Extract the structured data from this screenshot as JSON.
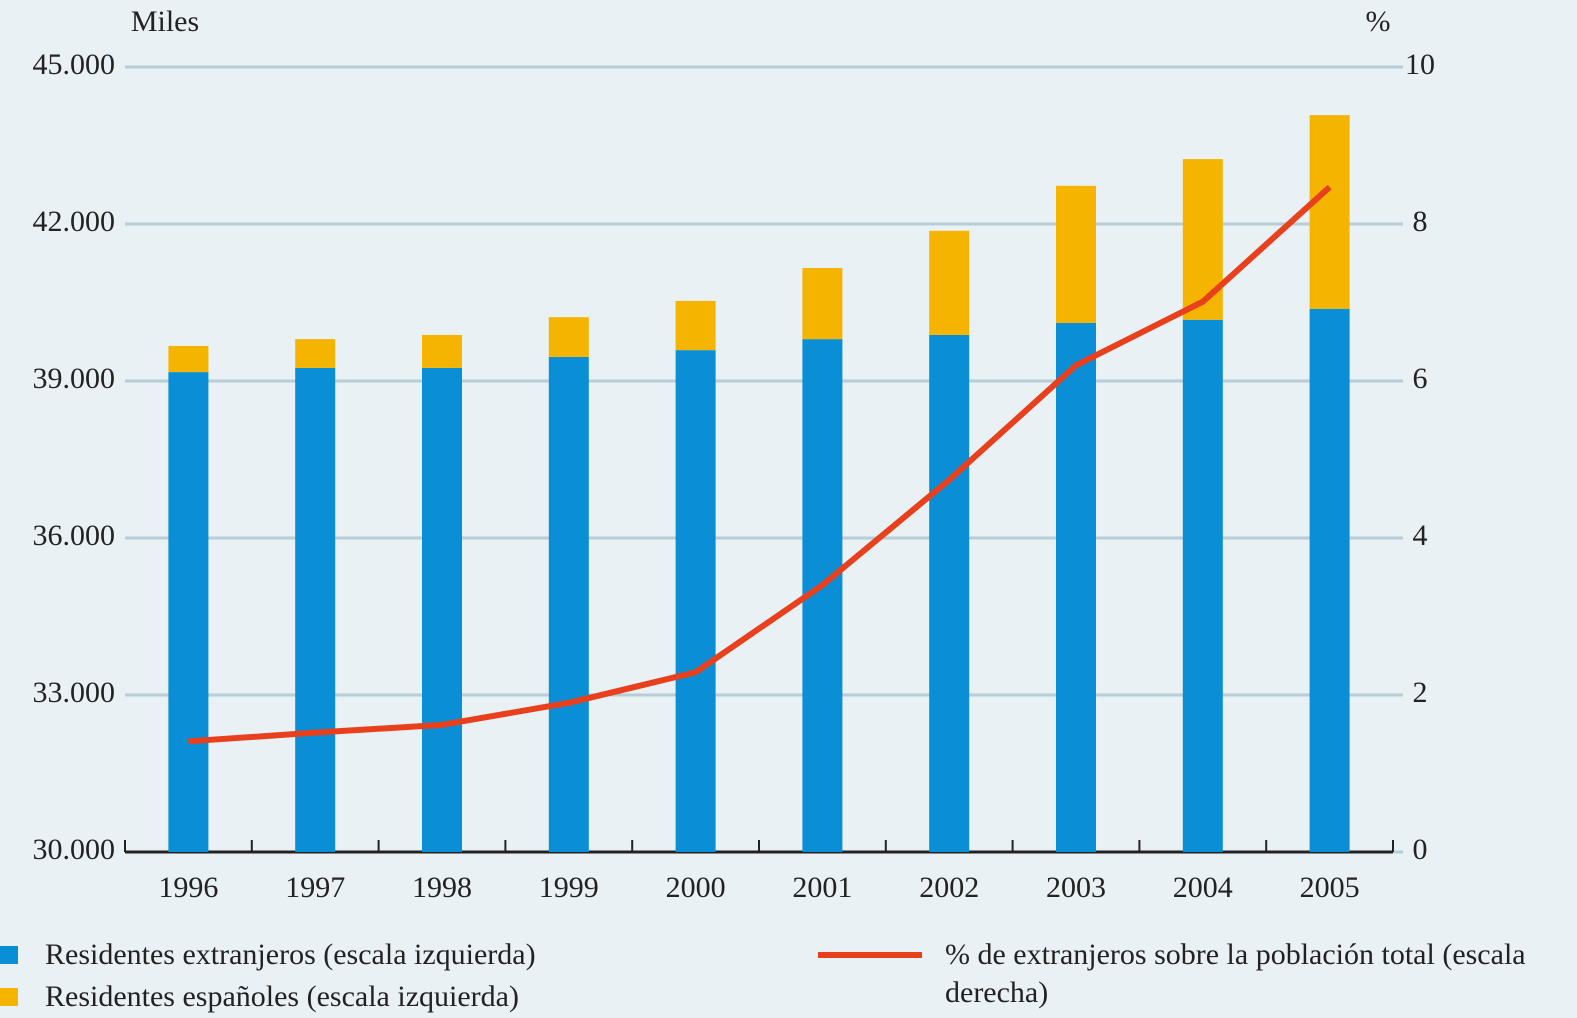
{
  "chart_data": {
    "type": "bar",
    "y_label": "Miles",
    "y2_label": "%",
    "categories": [
      "1996",
      "1997",
      "1998",
      "1999",
      "2000",
      "2001",
      "2002",
      "2003",
      "2004",
      "2005"
    ],
    "series": [
      {
        "name": "Residentes extranjeros (escala izquierda)",
        "color": "#0a8fd6",
        "values": [
          39170,
          39250,
          39250,
          39460,
          39590,
          39800,
          39880,
          40110,
          40170,
          40380
        ]
      },
      {
        "name": "Residentes españoles (escala izquierda)",
        "color": "#f5b400",
        "stacked": true,
        "values": [
          500,
          550,
          630,
          760,
          940,
          1360,
          1990,
          2620,
          3070,
          3700
        ]
      },
      {
        "name": "% de extranjeros sobre la población total (escala derecha)",
        "color": "#e8401c",
        "type": "line",
        "axis": "y2",
        "values": [
          1.41,
          1.52,
          1.62,
          1.9,
          2.29,
          3.4,
          4.74,
          6.2,
          7.01,
          8.47
        ]
      }
    ],
    "ylim": [
      30000,
      45000
    ],
    "yticks": [
      {
        "value": 30000,
        "label": "30.000"
      },
      {
        "value": 33000,
        "label": "33.000"
      },
      {
        "value": 36000,
        "label": "36.000"
      },
      {
        "value": 39000,
        "label": "39.000"
      },
      {
        "value": 42000,
        "label": "42.000"
      },
      {
        "value": 45000,
        "label": "45.000"
      }
    ],
    "y2lim": [
      0,
      10
    ],
    "y2ticks": [
      0,
      2,
      4,
      6,
      8,
      10
    ],
    "grid": true
  }
}
